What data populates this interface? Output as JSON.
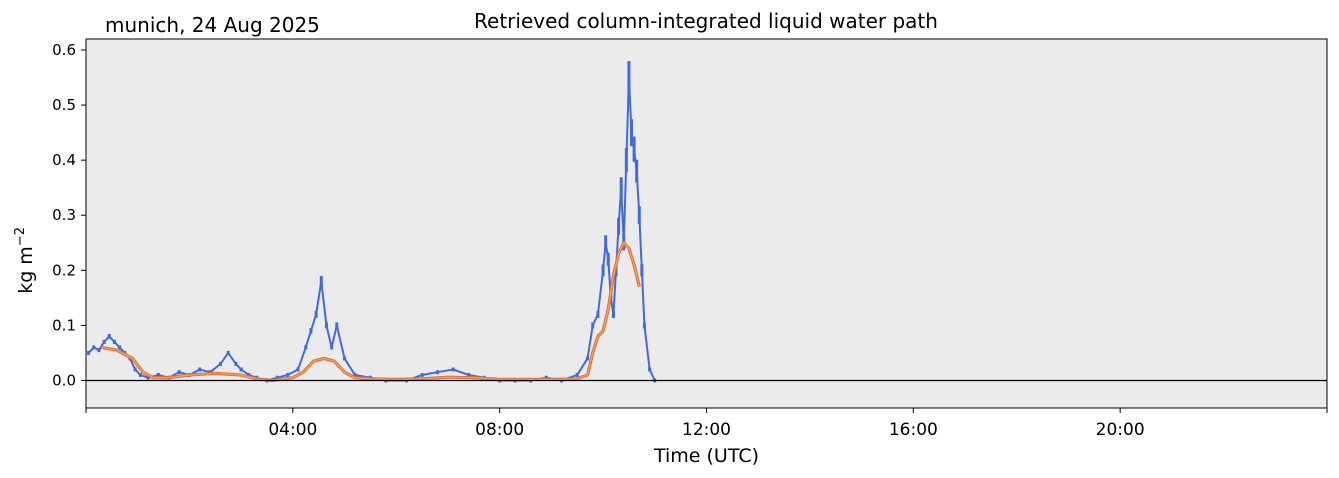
{
  "station_label": "munich, 24 Aug 2025",
  "chart_data": {
    "type": "line",
    "title": "Retrieved column-integrated liquid water path",
    "xlabel": "Time (UTC)",
    "ylabel_base": "kg m",
    "ylabel_exp": "−2",
    "xlim_hours": [
      0,
      24
    ],
    "ylim": [
      -0.05,
      0.62
    ],
    "yticks": [
      0.0,
      0.1,
      0.2,
      0.3,
      0.4,
      0.5,
      0.6
    ],
    "ytick_labels": [
      "0.0",
      "0.1",
      "0.2",
      "0.3",
      "0.4",
      "0.5",
      "0.6"
    ],
    "xticks_hours": [
      4,
      8,
      12,
      16,
      20
    ],
    "xtick_labels": [
      "04:00",
      "08:00",
      "12:00",
      "16:00",
      "20:00"
    ],
    "minor_xticks_hours": [
      0,
      24
    ],
    "zero_line": true,
    "grid": false,
    "colors": {
      "background": "#ebebeb",
      "raw": "#4169e1",
      "smoothed_outer": "#e0702e",
      "smoothed_inner": "#f4a460",
      "zero_line": "#000000"
    },
    "series": [
      {
        "style": "points",
        "x_hours": [
          0.05,
          0.15,
          0.25,
          0.35,
          0.45,
          0.55,
          0.65,
          0.75,
          0.85,
          0.95,
          1.05,
          1.2,
          1.4,
          1.6,
          1.8,
          2.0,
          2.2,
          2.4,
          2.6,
          2.75,
          2.9,
          3.0,
          3.15,
          3.3,
          3.5,
          3.7,
          3.9,
          4.1,
          4.25,
          4.35,
          4.45,
          4.55,
          4.65,
          4.75,
          4.85,
          5.0,
          5.2,
          5.5,
          5.8,
          6.2,
          6.5,
          6.8,
          7.1,
          7.4,
          7.7,
          8.0,
          8.3,
          8.6,
          8.9,
          9.2,
          9.5,
          9.7,
          9.8,
          9.9,
          10.0,
          10.05,
          10.1,
          10.15,
          10.2,
          10.25,
          10.3,
          10.35,
          10.4,
          10.45,
          10.5,
          10.55,
          10.6,
          10.65,
          10.7,
          10.75,
          10.8,
          10.9,
          11.0
        ],
        "values": [
          0.05,
          0.06,
          0.055,
          0.07,
          0.08,
          0.07,
          0.06,
          0.05,
          0.04,
          0.02,
          0.01,
          0.005,
          0.01,
          0.005,
          0.015,
          0.01,
          0.02,
          0.015,
          0.03,
          0.05,
          0.03,
          0.02,
          0.01,
          0.005,
          0.0,
          0.005,
          0.01,
          0.02,
          0.06,
          0.09,
          0.12,
          0.18,
          0.1,
          0.06,
          0.1,
          0.04,
          0.01,
          0.005,
          0.0,
          0.0,
          0.01,
          0.015,
          0.02,
          0.01,
          0.005,
          0.0,
          0.0,
          0.0,
          0.005,
          0.0,
          0.01,
          0.04,
          0.1,
          0.12,
          0.2,
          0.25,
          0.22,
          0.15,
          0.12,
          0.2,
          0.28,
          0.35,
          0.25,
          0.4,
          0.55,
          0.45,
          0.42,
          0.38,
          0.3,
          0.2,
          0.1,
          0.02,
          0.0
        ]
      },
      {
        "style": "line",
        "x_hours": [
          0.3,
          0.6,
          0.9,
          1.1,
          1.3,
          1.6,
          2.0,
          2.5,
          3.0,
          3.3,
          3.6,
          4.0,
          4.2,
          4.4,
          4.6,
          4.8,
          5.0,
          5.2,
          5.5,
          6.0,
          6.5,
          7.0,
          7.5,
          8.0,
          8.5,
          9.0,
          9.5,
          9.7,
          9.8,
          9.9,
          10.0,
          10.1,
          10.2,
          10.3,
          10.4,
          10.5,
          10.6,
          10.7
        ],
        "values": [
          0.06,
          0.055,
          0.04,
          0.015,
          0.005,
          0.005,
          0.01,
          0.013,
          0.01,
          0.003,
          0.0,
          0.005,
          0.015,
          0.035,
          0.04,
          0.035,
          0.015,
          0.005,
          0.003,
          0.002,
          0.003,
          0.006,
          0.005,
          0.002,
          0.002,
          0.002,
          0.003,
          0.01,
          0.05,
          0.08,
          0.09,
          0.13,
          0.19,
          0.23,
          0.25,
          0.24,
          0.21,
          0.17
        ]
      }
    ]
  }
}
